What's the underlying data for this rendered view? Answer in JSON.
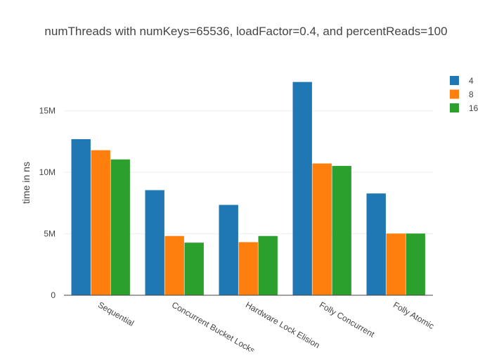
{
  "chart_data": {
    "type": "bar",
    "title": "numThreads with numKeys=65536, loadFactor=0.4, and percentReads=100",
    "xlabel": "",
    "ylabel": "time in ns",
    "categories": [
      "Sequential",
      "Concurrent Bucket Locks",
      "Hardware Lock Elision",
      "Folly Concurrent",
      "Folly Atomic"
    ],
    "series": [
      {
        "name": "4",
        "color": "#1f77b4",
        "values": [
          12700000,
          8550000,
          7350000,
          17350000,
          8280000
        ]
      },
      {
        "name": "8",
        "color": "#ff7f0e",
        "values": [
          11800000,
          4820000,
          4320000,
          10720000,
          5020000
        ]
      },
      {
        "name": "16",
        "color": "#2ca02c",
        "values": [
          11050000,
          4280000,
          4820000,
          10520000,
          5020000
        ]
      }
    ],
    "ylim": [
      0,
      18300000
    ],
    "yticks": [
      {
        "value": 0,
        "label": "0"
      },
      {
        "value": 5000000,
        "label": "5M"
      },
      {
        "value": 10000000,
        "label": "10M"
      },
      {
        "value": 15000000,
        "label": "15M"
      }
    ],
    "grid": true,
    "legend_position": "top-right",
    "x_tick_rotation": "30deg"
  }
}
